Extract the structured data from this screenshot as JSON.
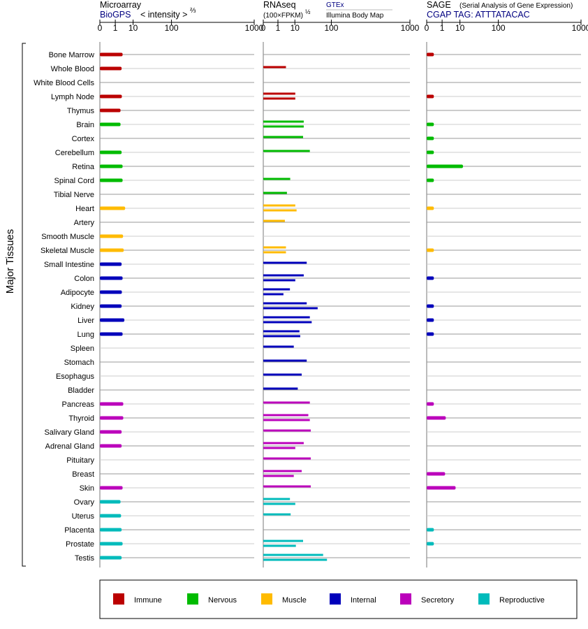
{
  "colors": {
    "Immune": "#bb0000",
    "Nervous": "#00bb00",
    "Muscle": "#ffbb00",
    "Internal": "#0000bb",
    "Secretory": "#bb00bb",
    "Reproductive": "#00bbbb"
  },
  "y_axis_label": "Major Tissues",
  "ticks": [
    "0",
    "1",
    "10",
    "100",
    "1000"
  ],
  "panels": {
    "microarray": {
      "title": "Microarray",
      "source": "BioGPS",
      "axis": "< intensity >",
      "exp": "⅔"
    },
    "rnaseq": {
      "title": "RNAseq",
      "unit": "(100×FPKM)",
      "exp": "½",
      "link": "GTEx",
      "source": "Illumina Body Map"
    },
    "sage": {
      "title": "SAGE",
      "subtitle": "(Serial Analysis of Gene Expression)",
      "tag": "CGAP TAG: ATTTATACAC"
    }
  },
  "legend": [
    {
      "label": "Immune",
      "color": "#bb0000"
    },
    {
      "label": "Nervous",
      "color": "#00bb00"
    },
    {
      "label": "Muscle",
      "color": "#ffbb00"
    },
    {
      "label": "Internal",
      "color": "#0000bb"
    },
    {
      "label": "Secretory",
      "color": "#bb00bb"
    },
    {
      "label": "Reproductive",
      "color": "#00bbbb"
    }
  ],
  "chart_data": {
    "type": "bar",
    "scale": "x^(1/3) panels with ticks 0, 1, 10, 100, 1000",
    "tissues": [
      "Bone Marrow",
      "Whole Blood",
      "White Blood Cells",
      "Lymph Node",
      "Thymus",
      "Brain",
      "Cortex",
      "Cerebellum",
      "Retina",
      "Spinal Cord",
      "Tibial Nerve",
      "Heart",
      "Artery",
      "Smooth Muscle",
      "Skeletal Muscle",
      "Small Intestine",
      "Colon",
      "Adipocyte",
      "Kidney",
      "Liver",
      "Lung",
      "Spleen",
      "Stomach",
      "Esophagus",
      "Bladder",
      "Pancreas",
      "Thyroid",
      "Salivary Gland",
      "Adrenal Gland",
      "Pituitary",
      "Breast",
      "Skin",
      "Ovary",
      "Uterus",
      "Placenta",
      "Prostate",
      "Testis"
    ],
    "groups": [
      "Immune",
      "Immune",
      "Immune",
      "Immune",
      "Immune",
      "Nervous",
      "Nervous",
      "Nervous",
      "Nervous",
      "Nervous",
      "Nervous",
      "Muscle",
      "Muscle",
      "Muscle",
      "Muscle",
      "Internal",
      "Internal",
      "Internal",
      "Internal",
      "Internal",
      "Internal",
      "Internal",
      "Internal",
      "Internal",
      "Internal",
      "Secretory",
      "Secretory",
      "Secretory",
      "Secretory",
      "Secretory",
      "Secretory",
      "Secretory",
      "Reproductive",
      "Reproductive",
      "Reproductive",
      "Reproductive",
      "Reproductive"
    ],
    "series": [
      {
        "name": "Microarray",
        "values": [
          [
            3.2
          ],
          [
            2.8
          ],
          [],
          [
            2.9
          ],
          [
            2.4
          ],
          [
            2.4
          ],
          [],
          [
            2.8
          ],
          [
            3.2
          ],
          [
            3.2
          ],
          [],
          [
            4.4
          ],
          [],
          [
            3.4
          ],
          [
            3.7
          ],
          [
            2.8
          ],
          [
            3.2
          ],
          [
            2.9
          ],
          [
            2.8
          ],
          [
            4.0
          ],
          [
            3.2
          ],
          [],
          [],
          [],
          [],
          [
            3.5
          ],
          [
            3.5
          ],
          [
            2.8
          ],
          [
            2.8
          ],
          [],
          [],
          [
            3.2
          ],
          [
            2.4
          ],
          [
            2.6
          ],
          [
            2.8
          ],
          [
            3.2
          ],
          [
            2.8
          ]
        ]
      },
      {
        "name": "RNAseq",
        "values": [
          [],
          [
            3.7
          ],
          [],
          [
            10.4,
            10.4
          ],
          [],
          [
            21,
            21
          ],
          [
            20
          ],
          [
            32
          ],
          [],
          [
            6.2
          ],
          [
            4.2
          ],
          [
            10.4,
            11.7
          ],
          [
            3.2
          ],
          [],
          [
            3.7,
            3.7
          ],
          [
            26
          ],
          [
            21,
            10.4
          ],
          [
            6.0,
            2.6
          ],
          [
            26,
            51
          ],
          [
            32,
            36
          ],
          [
            15,
            16
          ],
          [
            9.0
          ],
          [
            26
          ],
          [
            18
          ],
          [
            13
          ],
          [
            32
          ],
          [
            29,
            32
          ],
          [
            34
          ],
          [
            21,
            10.4
          ],
          [
            34
          ],
          [
            18,
            9.0
          ],
          [
            34
          ],
          [
            6.0,
            10.4
          ],
          [
            6.5
          ],
          [],
          [
            20,
            11.0
          ],
          [
            68,
            82
          ]
        ]
      },
      {
        "name": "SAGE",
        "values": [
          [
            0.1
          ],
          [],
          [],
          [
            0.1
          ],
          [],
          [
            0.1
          ],
          [
            0.1
          ],
          [
            0.1
          ],
          [
            13
          ],
          [
            0.1
          ],
          [],
          [
            0.1
          ],
          [],
          [],
          [
            0.1
          ],
          [],
          [
            0.1
          ],
          [],
          [
            0.1
          ],
          [
            0.1
          ],
          [
            0.1
          ],
          [],
          [],
          [],
          [],
          [
            0.1
          ],
          [
            1.9
          ],
          [],
          [],
          [],
          [
            1.7
          ],
          [
            6.6
          ],
          [],
          [],
          [
            0.1
          ],
          [
            0.1
          ],
          []
        ]
      }
    ]
  }
}
